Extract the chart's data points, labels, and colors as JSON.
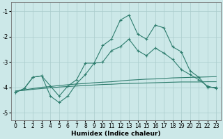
{
  "xlabel": "Humidex (Indice chaleur)",
  "bg_color": "#cce8e8",
  "grid_color": "#aacccc",
  "line_color": "#2e7d6e",
  "x_data": [
    0,
    1,
    2,
    3,
    4,
    5,
    6,
    7,
    8,
    9,
    10,
    11,
    12,
    13,
    14,
    15,
    16,
    17,
    18,
    19,
    20,
    21,
    22,
    23
  ],
  "line1": [
    -4.2,
    -4.05,
    -3.6,
    -3.55,
    -3.95,
    -4.35,
    -3.95,
    -3.7,
    -3.05,
    -3.05,
    -2.35,
    -2.1,
    -1.35,
    -1.15,
    -1.9,
    -2.1,
    -1.55,
    -1.65,
    -2.4,
    -2.6,
    -3.35,
    -3.6,
    -4.0,
    -4.0
  ],
  "line2": [
    -4.2,
    -4.05,
    -3.6,
    -3.55,
    -4.35,
    -4.6,
    -4.35,
    -3.85,
    -3.5,
    -3.05,
    -3.0,
    -2.55,
    -2.4,
    -2.1,
    -2.55,
    -2.75,
    -2.45,
    -2.65,
    -2.9,
    -3.3,
    -3.5,
    -3.7,
    -3.95,
    -4.05
  ],
  "line3": [
    -4.15,
    -4.1,
    -4.05,
    -4.0,
    -3.97,
    -3.93,
    -3.9,
    -3.87,
    -3.85,
    -3.82,
    -3.8,
    -3.78,
    -3.75,
    -3.72,
    -3.7,
    -3.68,
    -3.67,
    -3.65,
    -3.63,
    -3.62,
    -3.61,
    -3.6,
    -3.59,
    -3.58
  ],
  "line4": [
    -4.15,
    -4.12,
    -4.08,
    -4.05,
    -4.02,
    -3.99,
    -3.97,
    -3.95,
    -3.93,
    -3.91,
    -3.89,
    -3.88,
    -3.86,
    -3.85,
    -3.84,
    -3.83,
    -3.82,
    -3.81,
    -3.8,
    -3.79,
    -3.79,
    -3.79,
    -3.78,
    -3.78
  ],
  "xlim": [
    -0.5,
    23.5
  ],
  "ylim": [
    -5.3,
    -0.65
  ],
  "yticks": [
    -5,
    -4,
    -3,
    -2,
    -1
  ],
  "xticks": [
    0,
    1,
    2,
    3,
    4,
    5,
    6,
    7,
    8,
    9,
    10,
    11,
    12,
    13,
    14,
    15,
    16,
    17,
    18,
    19,
    20,
    21,
    22,
    23
  ]
}
